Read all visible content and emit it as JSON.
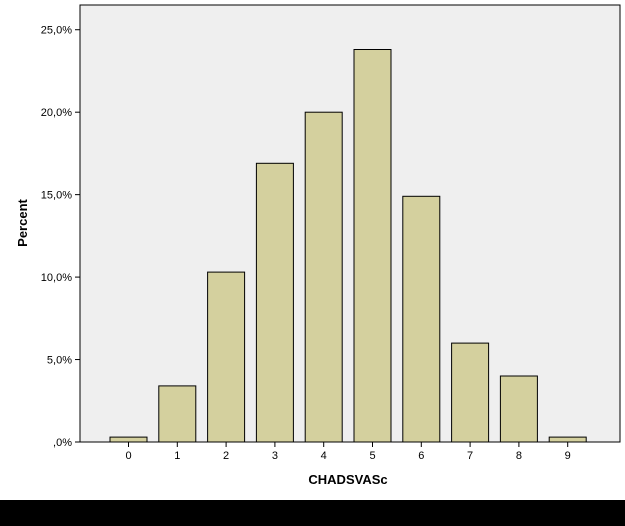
{
  "chart_data": {
    "type": "bar",
    "title": "",
    "xlabel": "CHADSVASc",
    "ylabel": "Percent",
    "categories": [
      "0",
      "1",
      "2",
      "3",
      "4",
      "5",
      "6",
      "7",
      "8",
      "9"
    ],
    "values": [
      0.3,
      3.4,
      10.3,
      16.9,
      20.0,
      23.8,
      14.9,
      6.0,
      4.0,
      0.3
    ],
    "ylim": [
      0,
      26.5
    ],
    "yticks": [
      0,
      5,
      10,
      15,
      20,
      25
    ],
    "ytick_labels": [
      ",0%",
      "5,0%",
      "10,0%",
      "15,0%",
      "20,0%",
      "25,0%"
    ],
    "grid": false,
    "legend": "none",
    "colors": {
      "bar_fill": "#d4d09e",
      "bar_stroke": "#000000",
      "plot_background": "#efefef"
    }
  }
}
